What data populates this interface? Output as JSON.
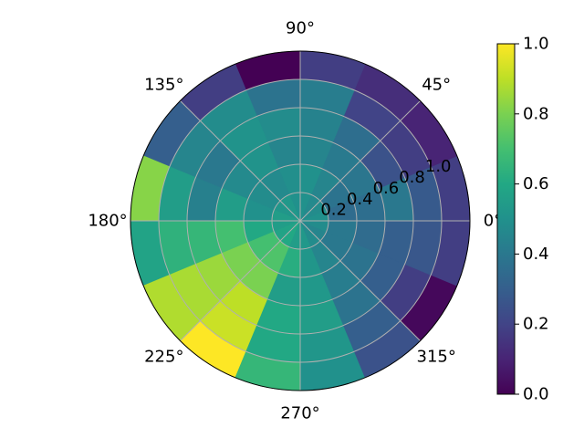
{
  "chart_data": {
    "type": "heatmap",
    "projection": "polar",
    "colormap": "viridis",
    "theta_bins": 16,
    "r_edges": [
      0,
      0.2,
      0.4,
      0.6,
      0.8,
      1.0,
      1.2
    ],
    "values": [
      [
        0.5,
        0.35,
        0.36,
        0.4,
        0.28,
        0.18
      ],
      [
        0.48,
        0.38,
        0.39,
        0.25,
        0.18,
        0.1
      ],
      [
        0.47,
        0.45,
        0.41,
        0.36,
        0.2,
        0.13
      ],
      [
        0.5,
        0.5,
        0.45,
        0.44,
        0.42,
        0.18
      ],
      [
        0.5,
        0.49,
        0.45,
        0.48,
        0.38,
        0.0
      ],
      [
        0.53,
        0.47,
        0.51,
        0.51,
        0.48,
        0.18
      ],
      [
        0.52,
        0.48,
        0.47,
        0.4,
        0.45,
        0.3
      ],
      [
        0.55,
        0.5,
        0.55,
        0.43,
        0.55,
        0.82
      ],
      [
        0.55,
        0.6,
        0.7,
        0.66,
        0.64,
        0.58
      ],
      [
        0.58,
        0.7,
        0.8,
        0.85,
        0.87,
        0.88
      ],
      [
        0.6,
        0.72,
        0.8,
        0.9,
        0.92,
        1.0
      ],
      [
        0.55,
        0.62,
        0.55,
        0.6,
        0.6,
        0.66
      ],
      [
        0.53,
        0.52,
        0.53,
        0.55,
        0.52,
        0.5
      ],
      [
        0.48,
        0.45,
        0.42,
        0.38,
        0.3,
        0.25
      ],
      [
        0.45,
        0.4,
        0.38,
        0.3,
        0.18,
        0.02
      ],
      [
        0.48,
        0.4,
        0.35,
        0.3,
        0.27,
        0.18
      ]
    ],
    "theta_tick_labels": [
      "0°",
      "45°",
      "90°",
      "135°",
      "180°",
      "225°",
      "270°",
      "315°"
    ],
    "theta_tick_degrees": [
      0,
      45,
      90,
      135,
      180,
      225,
      270,
      315
    ],
    "r_tick_labels": [
      "0.2",
      "0.4",
      "0.6",
      "0.8",
      "1.0"
    ],
    "r_tick_values": [
      0.2,
      0.4,
      0.6,
      0.8,
      1.0
    ],
    "rlim": [
      0,
      1.2
    ],
    "grid": true,
    "colorbar": {
      "range": [
        0.0,
        1.0
      ],
      "tick_values": [
        0.0,
        0.2,
        0.4,
        0.6,
        0.8,
        1.0
      ],
      "tick_labels": [
        "0.0",
        "0.2",
        "0.4",
        "0.6",
        "0.8",
        "1.0"
      ],
      "placement": "right"
    }
  }
}
